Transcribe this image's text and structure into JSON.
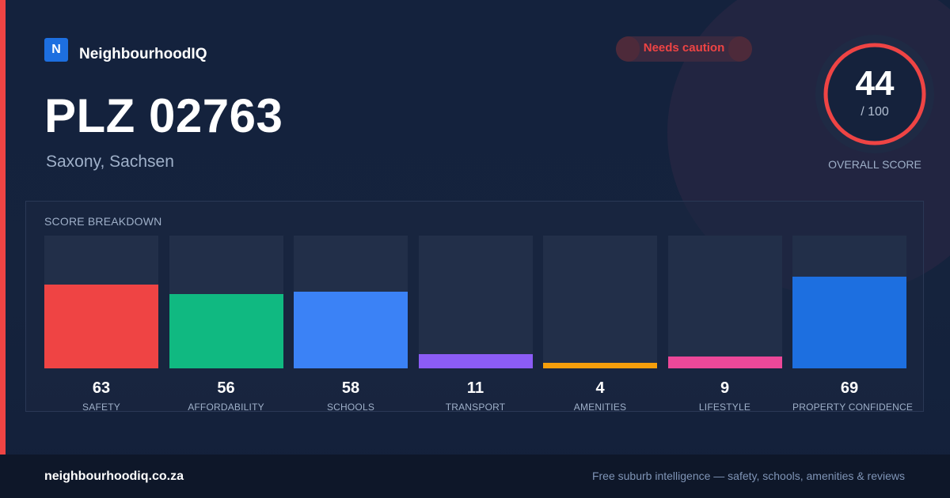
{
  "brand": {
    "logo_letter": "N",
    "name": "NeighbourhoodIQ"
  },
  "status_badge": {
    "label": "Needs caution",
    "color": "#ef4444"
  },
  "location": {
    "title": "PLZ 02763",
    "subtitle": "Saxony, Sachsen"
  },
  "overall_score": {
    "value": "44",
    "denominator": "/ 100",
    "label": "OVERALL SCORE",
    "fraction": 0.44,
    "ring_color": "#ef4444"
  },
  "breakdown": {
    "title": "SCORE BREAKDOWN",
    "max": 100,
    "items": [
      {
        "label": "SAFETY",
        "value": 63,
        "color": "#ef4444"
      },
      {
        "label": "AFFORDABILITY",
        "value": 56,
        "color": "#10b981"
      },
      {
        "label": "SCHOOLS",
        "value": 58,
        "color": "#3b82f6"
      },
      {
        "label": "TRANSPORT",
        "value": 11,
        "color": "#8b5cf6"
      },
      {
        "label": "AMENITIES",
        "value": 4,
        "color": "#f59e0b"
      },
      {
        "label": "LIFESTYLE",
        "value": 9,
        "color": "#ec4899"
      },
      {
        "label": "PROPERTY CONFIDENCE",
        "value": 69,
        "color": "#1d6fe0"
      }
    ]
  },
  "footer": {
    "site": "neighbourhoodiq.co.za",
    "tagline": "Free suburb intelligence — safety, schools, amenities & reviews"
  }
}
